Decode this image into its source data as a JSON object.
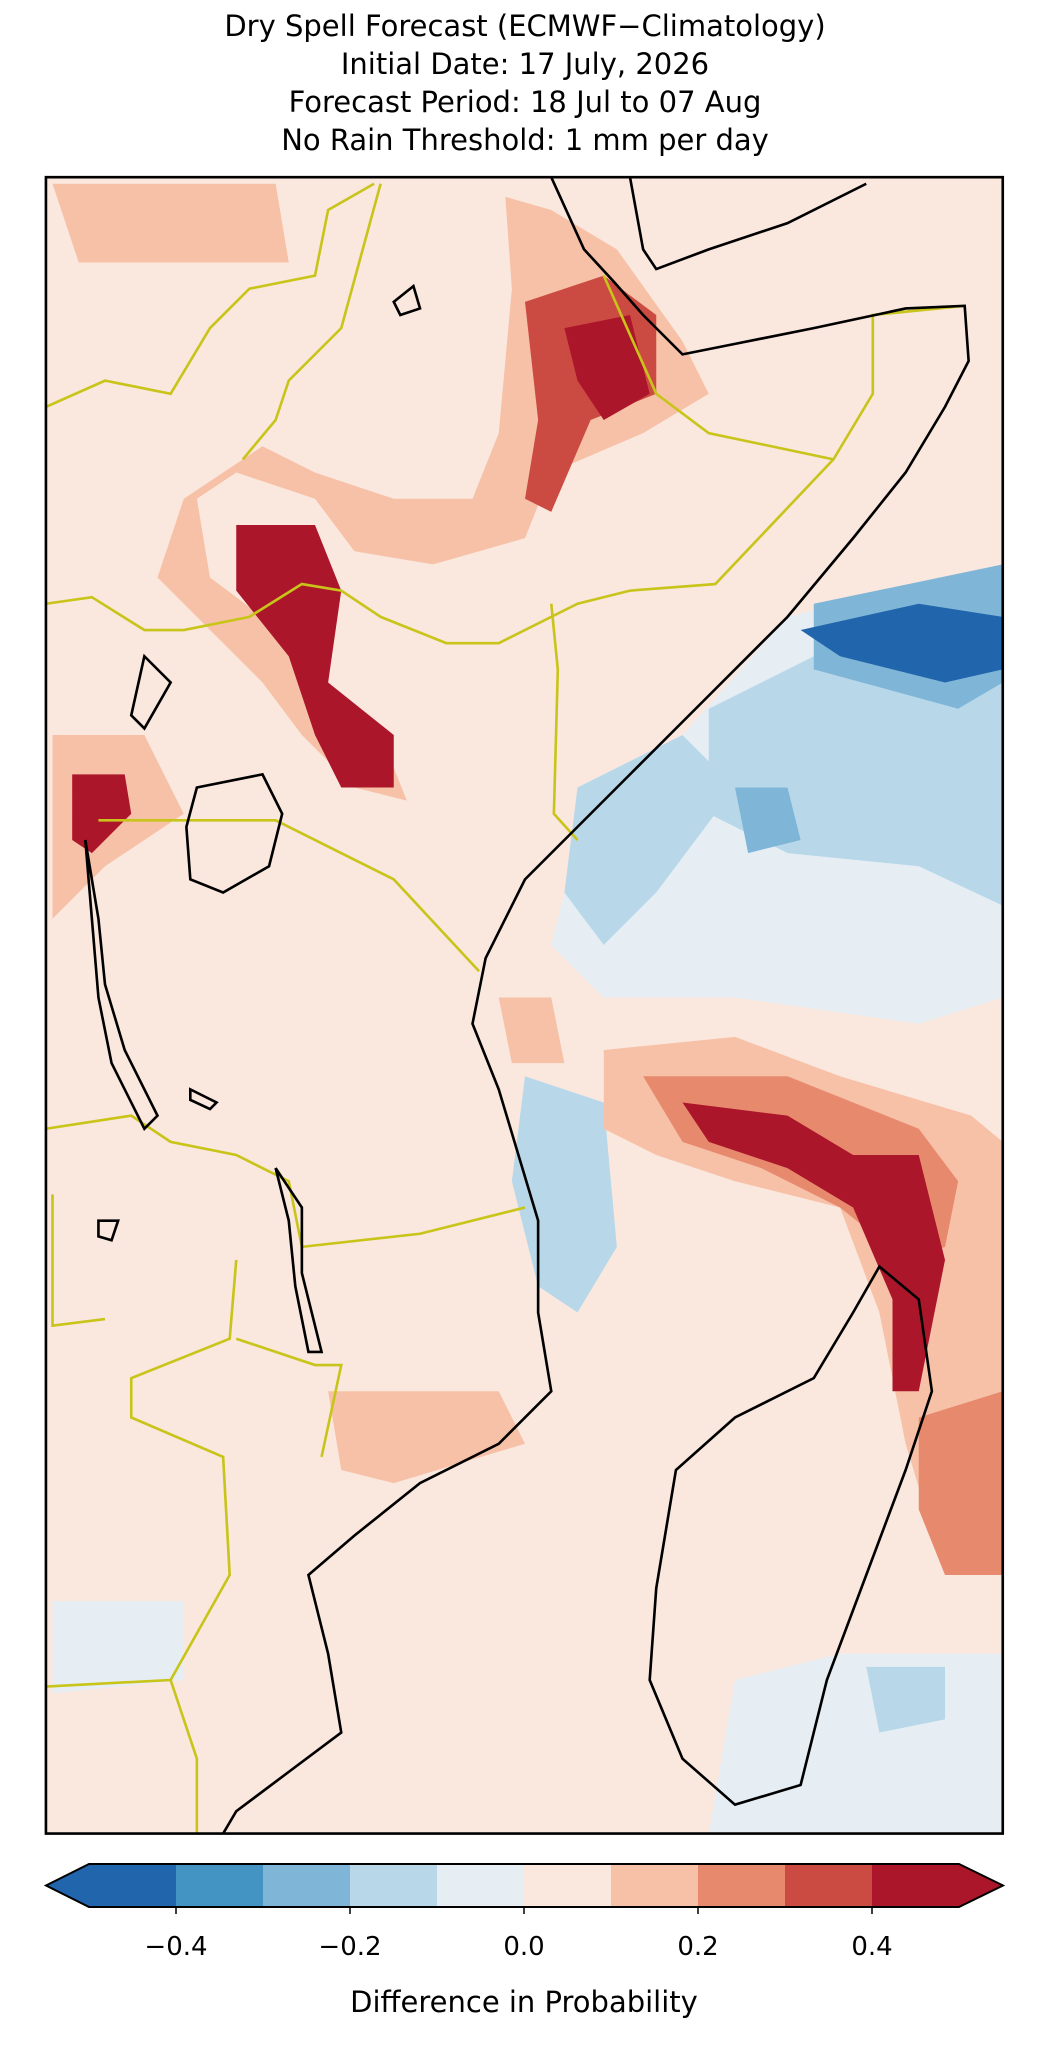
{
  "title": [
    "Dry Spell Forecast (ECMWF−Climatology)",
    "Initial Date: 17 July, 2026",
    "Forecast Period: 18 Jul to 07 Aug",
    "No Rain Threshold: 1 mm per day"
  ],
  "colorbar": {
    "label": "Difference in Probability",
    "levels": [
      -0.5,
      -0.4,
      -0.3,
      -0.2,
      -0.1,
      0,
      0.1,
      0.2,
      0.3,
      0.4,
      0.5
    ],
    "colors": [
      "#2166ac",
      "#4393c3",
      "#7fb6d8",
      "#b8d8ea",
      "#e6eef4",
      "#fae8df",
      "#f7c1a7",
      "#e7896d",
      "#cb4b43",
      "#ab162a"
    ],
    "extend": "both",
    "ticks": [
      {
        "value": -0.4,
        "label": "−0.4"
      },
      {
        "value": -0.2,
        "label": "−0.2"
      },
      {
        "value": 0,
        "label": "0.0"
      },
      0.2,
      0.4
    ]
  }
}
